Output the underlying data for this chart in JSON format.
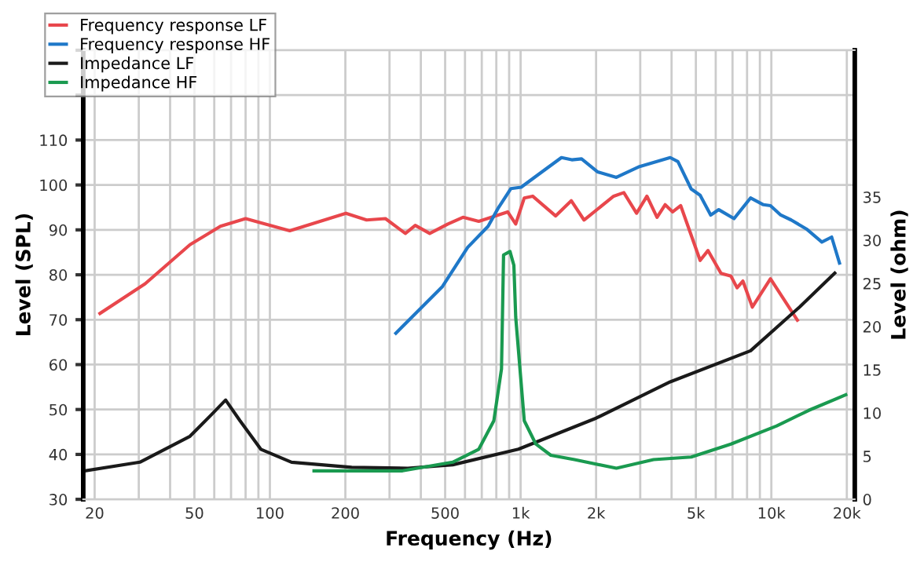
{
  "chart_data": {
    "type": "line",
    "xlabel": "Frequency (Hz)",
    "ylabel": "Level (SPL)",
    "y2label": "Level (ohm)",
    "log": "x",
    "grid": true,
    "legend": "top left",
    "marker": "none",
    "line_style": "solid",
    "xlim": [
      18,
      21500
    ],
    "ylim": [
      30,
      130
    ],
    "y2lim": [
      0,
      52
    ],
    "xticks": [
      {
        "value": 20,
        "label": "20"
      },
      {
        "value": 30,
        "label": null
      },
      {
        "value": 40,
        "label": null
      },
      {
        "value": 50,
        "label": "50"
      },
      {
        "value": 60,
        "label": null
      },
      {
        "value": 70,
        "label": null
      },
      {
        "value": 80,
        "label": null
      },
      {
        "value": 90,
        "label": null
      },
      {
        "value": 100,
        "label": "100"
      },
      {
        "value": 200,
        "label": "200"
      },
      {
        "value": 300,
        "label": null
      },
      {
        "value": 400,
        "label": null
      },
      {
        "value": 500,
        "label": "500"
      },
      {
        "value": 600,
        "label": null
      },
      {
        "value": 700,
        "label": null
      },
      {
        "value": 800,
        "label": null
      },
      {
        "value": 900,
        "label": null
      },
      {
        "value": 1000,
        "label": "1k"
      },
      {
        "value": 2000,
        "label": "2k"
      },
      {
        "value": 3000,
        "label": null
      },
      {
        "value": 4000,
        "label": null
      },
      {
        "value": 5000,
        "label": "5k"
      },
      {
        "value": 6000,
        "label": null
      },
      {
        "value": 7000,
        "label": null
      },
      {
        "value": 8000,
        "label": null
      },
      {
        "value": 9000,
        "label": null
      },
      {
        "value": 10000,
        "label": "10k"
      },
      {
        "value": 20000,
        "label": "20k"
      }
    ],
    "yticks": [
      30,
      40,
      50,
      60,
      70,
      80,
      90,
      100,
      110,
      {
        "value": 120,
        "label": null
      },
      {
        "value": 130,
        "label": null
      }
    ],
    "y2ticks": [
      0,
      5,
      10,
      15,
      20,
      25,
      30,
      35
    ],
    "series": [
      {
        "name": "Frequency response LF",
        "color": "#e8474c",
        "x": [
          21,
          31.8,
          48,
          63.5,
          80,
          120,
          201,
          243,
          289,
          347,
          380,
          434,
          513,
          589,
          681,
          888,
          956,
          1034,
          1117,
          1380,
          1592,
          1790,
          2350,
          2580,
          2900,
          3190,
          3500,
          3770,
          4040,
          4350,
          5200,
          5590,
          6300,
          6900,
          7300,
          7700,
          8400,
          9920,
          12700
        ],
        "values": [
          71.4,
          78,
          86.7,
          90.8,
          92.5,
          89.8,
          93.7,
          92.2,
          92.5,
          89.2,
          91,
          89.2,
          91.3,
          92.8,
          91.9,
          94,
          91.3,
          97.1,
          97.5,
          93.1,
          96.5,
          92.2,
          97.5,
          98.3,
          93.7,
          97.5,
          92.8,
          95.6,
          94,
          95.4,
          83.2,
          85.4,
          80.3,
          79.7,
          77.1,
          78.6,
          72.8,
          79.1,
          69.9
        ]
      },
      {
        "name": "Frequency response HF",
        "color": "#1f78c8",
        "x": [
          318,
          488,
          615,
          742,
          813,
          915,
          1005,
          1175,
          1455,
          1600,
          1750,
          2030,
          2410,
          2980,
          3950,
          4240,
          4790,
          5200,
          5730,
          6170,
          7100,
          8260,
          9300,
          9920,
          10900,
          12000,
          13800,
          15900,
          17400,
          18700
        ],
        "values": [
          67,
          77.4,
          86.1,
          90.8,
          94.8,
          99.2,
          99.5,
          102.3,
          106.1,
          105.6,
          105.8,
          102.9,
          101.7,
          104.1,
          106.1,
          105.2,
          99.1,
          97.7,
          93.3,
          94.5,
          92.5,
          97.1,
          95.6,
          95.4,
          93.3,
          92.2,
          90.2,
          87.3,
          88.4,
          82.6
        ]
      },
      {
        "name": "Impedance LF",
        "color": "#1a1a1a",
        "axis": "y2",
        "x": [
          18.3,
          30.3,
          48,
          58,
          66.6,
          76,
          92,
          122,
          212,
          355,
          536,
          980,
          2000,
          3950,
          8260,
          13000,
          17900
        ],
        "values": [
          3.3,
          4.3,
          7.3,
          9.7,
          11.5,
          9.1,
          5.8,
          4.3,
          3.7,
          3.6,
          4.0,
          5.8,
          9.4,
          13.6,
          17.2,
          22.3,
          26.2
        ]
      },
      {
        "name": "Impedance HF",
        "color": "#1a9a50",
        "axis": "y2",
        "x": [
          150,
          338,
          536,
          681,
          782,
          839,
          855,
          907,
          940,
          956,
          1034,
          1150,
          1320,
          1640,
          2410,
          3390,
          4790,
          6900,
          10500,
          14100,
          19800
        ],
        "values": [
          3.3,
          3.3,
          4.3,
          5.8,
          9.1,
          15.1,
          28.3,
          28.7,
          27.1,
          21.1,
          9.1,
          6.4,
          5.1,
          4.6,
          3.6,
          4.6,
          4.9,
          6.4,
          8.5,
          10.3,
          12.1
        ]
      }
    ]
  }
}
